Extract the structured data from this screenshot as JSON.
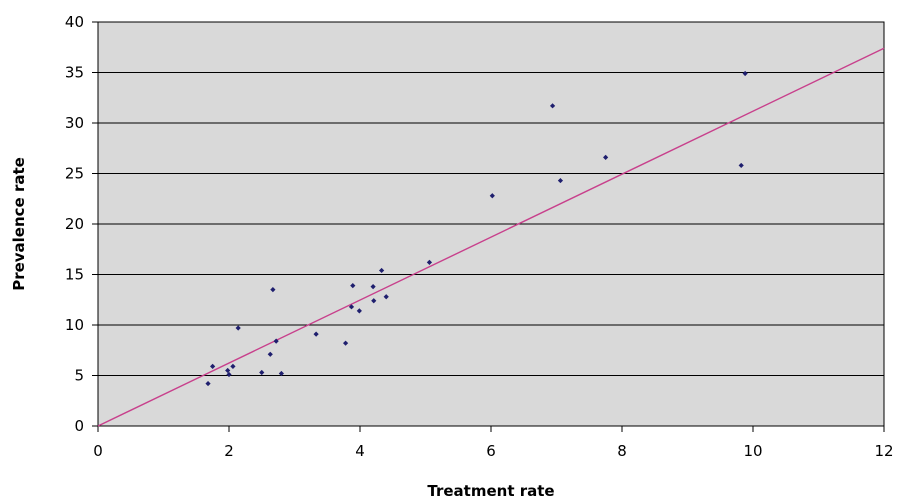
{
  "chart_data": {
    "type": "scatter",
    "title": "",
    "xlabel": "Treatment rate",
    "ylabel": "Prevalence rate",
    "xlim": [
      0,
      12
    ],
    "ylim": [
      0,
      40
    ],
    "x_ticks": [
      0,
      2,
      4,
      6,
      8,
      10,
      12
    ],
    "y_ticks": [
      0,
      5,
      10,
      15,
      20,
      25,
      30,
      35,
      40
    ],
    "grid": "horizontal",
    "legend": "none",
    "colors": {
      "plot_background": "#d9d9d9",
      "point": "#1f1f6e",
      "trendline": "#c8408c",
      "gridline": "#000000"
    },
    "series": [
      {
        "points": [
          {
            "x": 1.68,
            "y": 4.2
          },
          {
            "x": 1.75,
            "y": 5.9
          },
          {
            "x": 1.98,
            "y": 5.5
          },
          {
            "x": 2.0,
            "y": 5.1
          },
          {
            "x": 2.06,
            "y": 5.9
          },
          {
            "x": 2.14,
            "y": 9.7
          },
          {
            "x": 2.5,
            "y": 5.3
          },
          {
            "x": 2.63,
            "y": 7.1
          },
          {
            "x": 2.67,
            "y": 13.5
          },
          {
            "x": 2.72,
            "y": 8.4
          },
          {
            "x": 2.8,
            "y": 5.2
          },
          {
            "x": 3.33,
            "y": 9.1
          },
          {
            "x": 3.78,
            "y": 8.2
          },
          {
            "x": 3.87,
            "y": 11.8
          },
          {
            "x": 3.89,
            "y": 13.9
          },
          {
            "x": 3.99,
            "y": 11.4
          },
          {
            "x": 4.2,
            "y": 13.8
          },
          {
            "x": 4.21,
            "y": 12.4
          },
          {
            "x": 4.33,
            "y": 15.4
          },
          {
            "x": 4.4,
            "y": 12.8
          },
          {
            "x": 5.06,
            "y": 16.2
          },
          {
            "x": 6.02,
            "y": 22.8
          },
          {
            "x": 6.94,
            "y": 31.7
          },
          {
            "x": 7.06,
            "y": 24.3
          },
          {
            "x": 7.75,
            "y": 26.6
          },
          {
            "x": 9.82,
            "y": 25.8
          },
          {
            "x": 9.88,
            "y": 34.9
          }
        ]
      }
    ],
    "trendline": {
      "type": "linear",
      "from": [
        0,
        0
      ],
      "to": [
        12,
        37.4
      ]
    }
  }
}
